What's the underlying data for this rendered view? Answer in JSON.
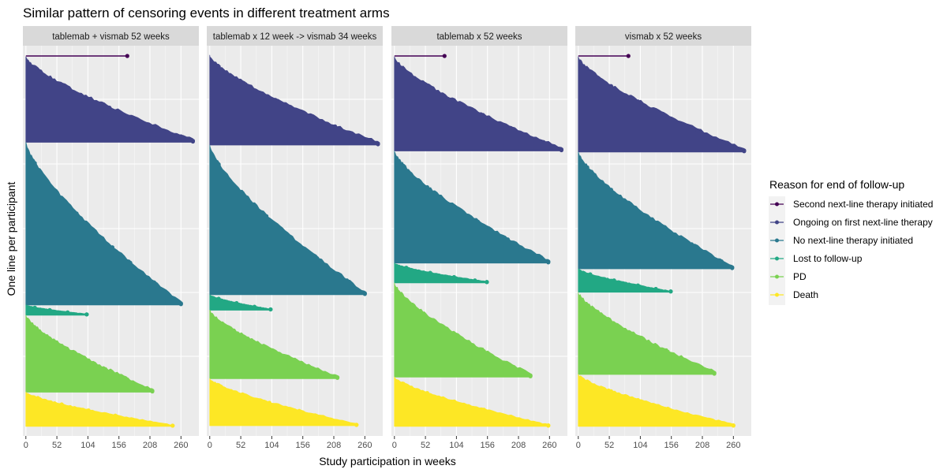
{
  "chart_data": {
    "type": "area",
    "title": "Similar pattern of censoring events in different treatment arms",
    "xlabel": "Study participation in weeks",
    "ylabel": "One line per participant",
    "x_ticks": [
      0,
      52,
      104,
      156,
      208,
      260
    ],
    "xlim": [
      -5,
      290
    ],
    "grid": true,
    "legend": {
      "title": "Reason for end of follow-up",
      "position": "right",
      "entries": [
        "Second next-line therapy initiated",
        "Ongoing on first next-line therapy",
        "No next-line therapy initiated",
        "Lost to follow-up",
        "PD",
        "Death"
      ]
    },
    "colors": {
      "Second next-line therapy initiated": "#440154",
      "Ongoing on first next-line therapy": "#414487",
      "No next-line therapy initiated": "#2A788E",
      "Lost to follow-up": "#22A884",
      "PD": "#7AD151",
      "Death": "#FDE725"
    },
    "panels": [
      {
        "strip": "tablemab + vismab 52 weeks",
        "groups": [
          {
            "reason": "Second next-line therapy initiated",
            "participants": 1,
            "max_weeks": 170,
            "sample_weeks": [
              170
            ]
          },
          {
            "reason": "Ongoing on first next-line therapy",
            "participants": 100,
            "max_weeks": 280,
            "sample_weeks": [
              20,
              60,
              100,
              140,
              180,
              220,
              260,
              280
            ]
          },
          {
            "reason": "No next-line therapy initiated",
            "participants": 190,
            "max_weeks": 260,
            "sample_weeks": [
              15,
              50,
              85,
              115,
              145,
              175,
              215,
              260
            ]
          },
          {
            "reason": "Lost to follow-up",
            "participants": 12,
            "max_weeks": 102,
            "sample_weeks": [
              15,
              40,
              70,
              102
            ]
          },
          {
            "reason": "PD",
            "participants": 90,
            "max_weeks": 212,
            "sample_weeks": [
              35,
              60,
              95,
              130,
              170,
              212
            ]
          },
          {
            "reason": "Death",
            "participants": 40,
            "max_weeks": 246,
            "sample_weeks": [
              20,
              60,
              105,
              150,
              246
            ]
          }
        ]
      },
      {
        "strip": "tablemab x 12 week -> vismab 34 weeks",
        "groups": [
          {
            "reason": "Ongoing on first next-line therapy",
            "participants": 105,
            "max_weeks": 282,
            "sample_weeks": [
              15,
              60,
              110,
              160,
              210,
              282
            ]
          },
          {
            "reason": "No next-line therapy initiated",
            "participants": 175,
            "max_weeks": 260,
            "sample_weeks": [
              15,
              55,
              95,
              135,
              180,
              230,
              260
            ]
          },
          {
            "reason": "Lost to follow-up",
            "participants": 18,
            "max_weeks": 102,
            "sample_weeks": [
              15,
              45,
              75,
              102
            ]
          },
          {
            "reason": "PD",
            "participants": 80,
            "max_weeks": 214,
            "sample_weeks": [
              40,
              70,
              105,
              145,
              214
            ]
          },
          {
            "reason": "Death",
            "participants": 55,
            "max_weeks": 246,
            "sample_weeks": [
              15,
              55,
              100,
              150,
              246
            ]
          }
        ]
      },
      {
        "strip": "tablemab x 52 weeks",
        "groups": [
          {
            "reason": "Second next-line therapy initiated",
            "participants": 1,
            "max_weeks": 84,
            "sample_weeks": [
              84
            ]
          },
          {
            "reason": "Ongoing on first next-line therapy",
            "participants": 105,
            "max_weeks": 280,
            "sample_weeks": [
              15,
              55,
              100,
              145,
              195,
              250,
              280
            ]
          },
          {
            "reason": "No next-line therapy initiated",
            "participants": 125,
            "max_weeks": 258,
            "sample_weeks": [
              15,
              55,
              95,
              140,
              190,
              240,
              258
            ]
          },
          {
            "reason": "Lost to follow-up",
            "participants": 22,
            "max_weeks": 155,
            "sample_weeks": [
              20,
              60,
              100,
              135,
              155
            ]
          },
          {
            "reason": "PD",
            "participants": 105,
            "max_weeks": 228,
            "sample_weeks": [
              30,
              65,
              105,
              150,
              200,
              228
            ]
          },
          {
            "reason": "Death",
            "participants": 55,
            "max_weeks": 258,
            "sample_weeks": [
              15,
              55,
              100,
              150,
              258
            ]
          }
        ]
      },
      {
        "strip": "vismab x 52 weeks",
        "groups": [
          {
            "reason": "Second next-line therapy initiated",
            "participants": 1,
            "max_weeks": 84,
            "sample_weeks": [
              84
            ]
          },
          {
            "reason": "Ongoing on first next-line therapy",
            "participants": 110,
            "max_weeks": 278,
            "sample_weeks": [
              15,
              55,
              100,
              145,
              200,
              250,
              278
            ]
          },
          {
            "reason": "No next-line therapy initiated",
            "participants": 135,
            "max_weeks": 258,
            "sample_weeks": [
              15,
              55,
              95,
              140,
              190,
              240,
              258
            ]
          },
          {
            "reason": "Lost to follow-up",
            "participants": 27,
            "max_weeks": 155,
            "sample_weeks": [
              20,
              60,
              100,
              130,
              155
            ]
          },
          {
            "reason": "PD",
            "participants": 95,
            "max_weeks": 228,
            "sample_weeks": [
              30,
              65,
              105,
              150,
              200,
              228
            ]
          },
          {
            "reason": "Death",
            "participants": 60,
            "max_weeks": 260,
            "sample_weeks": [
              15,
              55,
              100,
              150,
              260
            ]
          }
        ]
      }
    ]
  }
}
